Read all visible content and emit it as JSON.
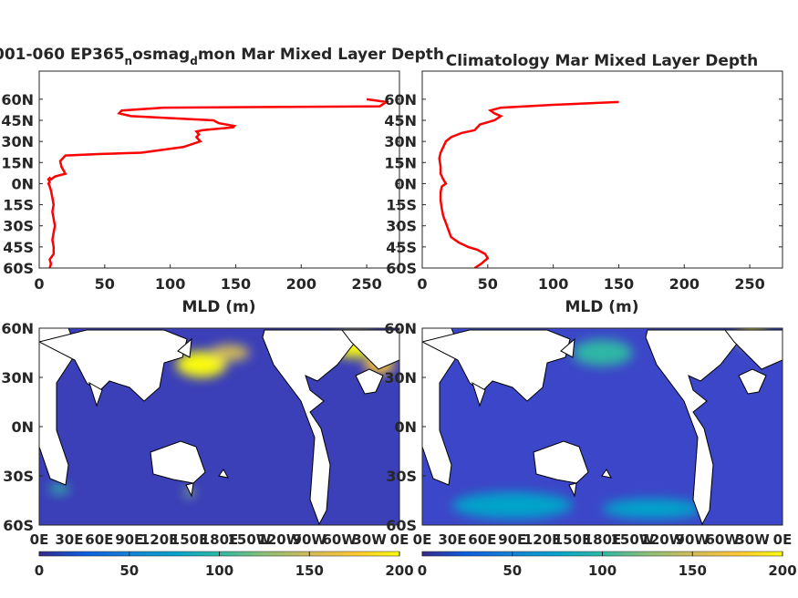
{
  "figure": {
    "panels": [
      {
        "title_main": "001-060 EP365",
        "title_sub1": "n",
        "title_mid": "osmag",
        "title_sub2": "d",
        "title_end": "mon Mar Mixed Layer Depth"
      },
      {
        "title_main": "Climatology Mar Mixed Layer Depth"
      }
    ],
    "map_x_ticks": [
      "0E",
      "30E",
      "60E",
      "90E",
      "120E",
      "150E",
      "180E",
      "150W",
      "120W",
      "90W",
      "60W",
      "30W",
      "0E"
    ],
    "map_y_ticks": [
      "60N",
      "30N",
      "0N",
      "30S",
      "60S"
    ],
    "colorbar_ticks": [
      "0",
      "50",
      "100",
      "150",
      "200"
    ]
  },
  "chart_data": [
    {
      "type": "line",
      "title": "001-060 EP365 n osmag d mon Mar Mixed Layer Depth",
      "xlabel": "MLD (m)",
      "ylabel": "",
      "xlim": [
        0,
        275
      ],
      "ylim": [
        -60,
        80
      ],
      "x_ticks": [
        "0",
        "50",
        "100",
        "150",
        "200",
        "250"
      ],
      "y_ticks": [
        "60S",
        "45S",
        "30S",
        "15S",
        "0N",
        "15N",
        "30N",
        "45N",
        "60N"
      ],
      "color": "#ff0000",
      "series": [
        {
          "x": [
            8,
            9,
            8,
            11,
            11,
            10,
            11,
            12,
            11,
            10,
            11,
            10,
            9,
            8,
            7,
            8,
            7,
            8,
            9,
            12,
            20,
            17,
            16,
            18,
            20,
            45,
            78,
            110,
            123,
            120,
            122,
            120,
            125,
            148,
            149,
            137,
            133,
            70,
            61,
            63,
            95,
            260,
            265,
            250
          ],
          "y": [
            -60,
            -57,
            -54,
            -50,
            -45,
            -40,
            -35,
            -30,
            -25,
            -20,
            -15,
            -10,
            -5,
            -2,
            0,
            1,
            3,
            4,
            3,
            5,
            7,
            12,
            16,
            18,
            20,
            21,
            22,
            26,
            30,
            33,
            35,
            37,
            38,
            40,
            41,
            43,
            45,
            48,
            50,
            52,
            54,
            55,
            58,
            60
          ]
        }
      ]
    },
    {
      "type": "line",
      "title": "Climatology Mar Mixed Layer Depth",
      "xlabel": "MLD (m)",
      "ylabel": "",
      "xlim": [
        0,
        275
      ],
      "ylim": [
        -60,
        80
      ],
      "x_ticks": [
        "0",
        "50",
        "100",
        "150",
        "200",
        "250"
      ],
      "y_ticks": [
        "60S",
        "45S",
        "30S",
        "15S",
        "0N",
        "15N",
        "30N",
        "45N",
        "60N"
      ],
      "color": "#ff0000",
      "series": [
        {
          "x": [
            40,
            45,
            50,
            48,
            42,
            35,
            28,
            22,
            20,
            18,
            16,
            15,
            14,
            14,
            15,
            18,
            16,
            14,
            14,
            13,
            14,
            16,
            18,
            22,
            30,
            40,
            42,
            44,
            55,
            60,
            55,
            52,
            60,
            100,
            150
          ],
          "y": [
            -60,
            -57,
            -53,
            -50,
            -47,
            -45,
            -42,
            -38,
            -33,
            -28,
            -23,
            -18,
            -12,
            -6,
            -2,
            0,
            3,
            7,
            12,
            18,
            22,
            26,
            30,
            33,
            36,
            38,
            40,
            42,
            45,
            48,
            50,
            52,
            54,
            56,
            58
          ]
        }
      ]
    },
    {
      "type": "heatmap",
      "title": "",
      "x_ticks": [
        "0E",
        "30E",
        "60E",
        "90E",
        "120E",
        "150E",
        "180E",
        "150W",
        "120W",
        "90W",
        "60W",
        "30W",
        "0E"
      ],
      "y_ticks": [
        "60N",
        "30N",
        "0N",
        "30S",
        "60S"
      ],
      "colorbar": {
        "min": 0,
        "max": 200,
        "ticks": [
          0,
          50,
          100,
          150,
          200
        ],
        "colormap": "parula"
      },
      "background_value": 20,
      "hotspots": [
        {
          "lon": 162,
          "lat": 38,
          "value": 200,
          "extent_lon": 25,
          "extent_lat": 8
        },
        {
          "lon": 190,
          "lat": 45,
          "value": 150,
          "extent_lon": 20,
          "extent_lat": 5
        },
        {
          "lon": 315,
          "lat": 50,
          "value": 200,
          "extent_lon": 25,
          "extent_lat": 8
        },
        {
          "lon": 340,
          "lat": 38,
          "value": 180,
          "extent_lon": 15,
          "extent_lat": 6
        },
        {
          "lon": 150,
          "lat": -40,
          "value": 120,
          "extent_lon": 5,
          "extent_lat": 3
        },
        {
          "lon": 20,
          "lat": -38,
          "value": 90,
          "extent_lon": 10,
          "extent_lat": 3
        }
      ]
    },
    {
      "type": "heatmap",
      "title": "",
      "x_ticks": [
        "0E",
        "30E",
        "60E",
        "90E",
        "120E",
        "150E",
        "180E",
        "150W",
        "120W",
        "90W",
        "60W",
        "30W",
        "0E"
      ],
      "y_ticks": [
        "60N",
        "30N",
        "0N",
        "30S",
        "60S"
      ],
      "colorbar": {
        "min": 0,
        "max": 200,
        "ticks": [
          0,
          50,
          100,
          150,
          200
        ],
        "colormap": "parula"
      },
      "background_value": 35,
      "hotspots": [
        {
          "lon": 330,
          "lat": 55,
          "value": 200,
          "extent_lon": 15,
          "extent_lat": 6
        },
        {
          "lon": 180,
          "lat": 45,
          "value": 90,
          "extent_lon": 30,
          "extent_lat": 8
        },
        {
          "lon": 90,
          "lat": -48,
          "value": 80,
          "extent_lon": 60,
          "extent_lat": 8
        },
        {
          "lon": 230,
          "lat": -50,
          "value": 80,
          "extent_lon": 50,
          "extent_lat": 6
        }
      ]
    }
  ]
}
